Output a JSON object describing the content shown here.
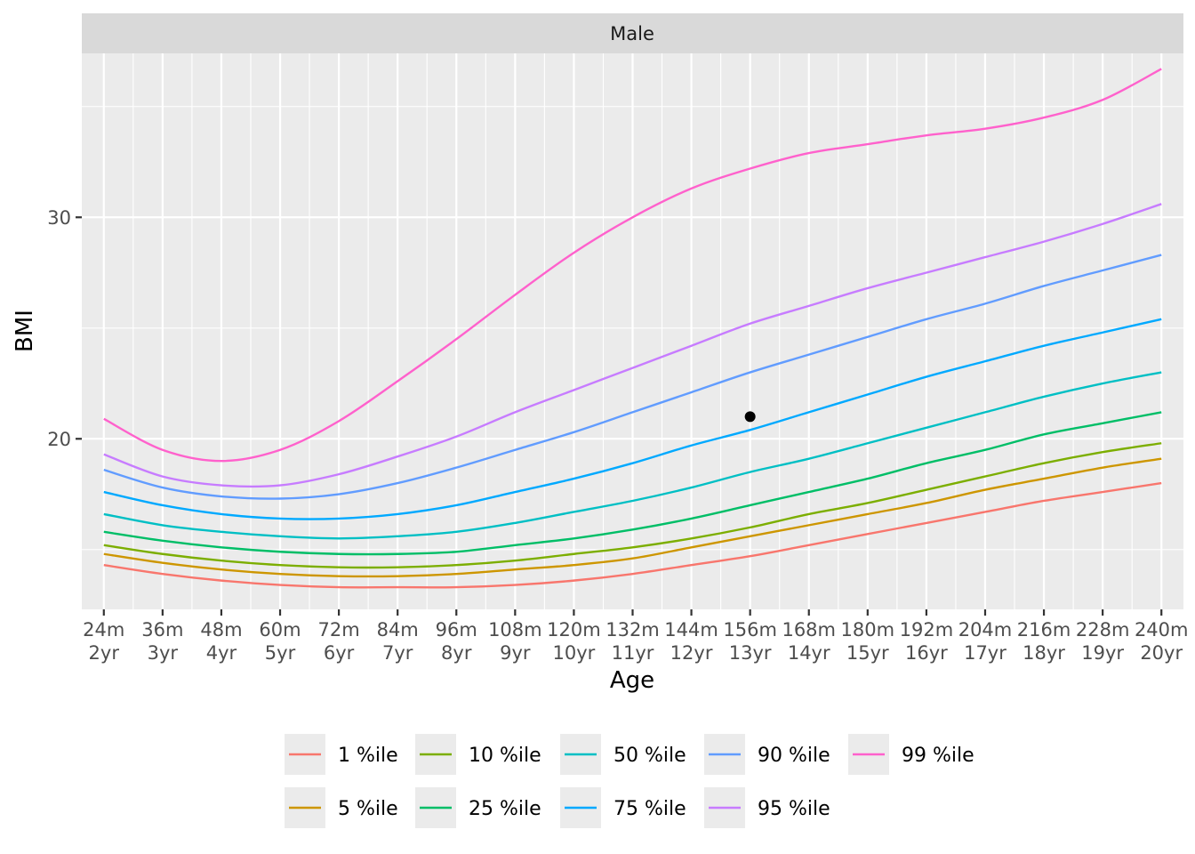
{
  "chart_data": {
    "type": "line",
    "facet_label": "Male",
    "xlabel": "Age",
    "ylabel": "BMI",
    "x_unit": "months",
    "xlim": [
      19.5,
      244.5
    ],
    "ylim": [
      12.3,
      37.4
    ],
    "x_ticks": [
      {
        "value": 24,
        "line1": "24m",
        "line2": "2yr"
      },
      {
        "value": 36,
        "line1": "36m",
        "line2": "3yr"
      },
      {
        "value": 48,
        "line1": "48m",
        "line2": "4yr"
      },
      {
        "value": 60,
        "line1": "60m",
        "line2": "5yr"
      },
      {
        "value": 72,
        "line1": "72m",
        "line2": "6yr"
      },
      {
        "value": 84,
        "line1": "84m",
        "line2": "7yr"
      },
      {
        "value": 96,
        "line1": "96m",
        "line2": "8yr"
      },
      {
        "value": 108,
        "line1": "108m",
        "line2": "9yr"
      },
      {
        "value": 120,
        "line1": "120m",
        "line2": "10yr"
      },
      {
        "value": 132,
        "line1": "132m",
        "line2": "11yr"
      },
      {
        "value": 144,
        "line1": "144m",
        "line2": "12yr"
      },
      {
        "value": 156,
        "line1": "156m",
        "line2": "13yr"
      },
      {
        "value": 168,
        "line1": "168m",
        "line2": "14yr"
      },
      {
        "value": 180,
        "line1": "180m",
        "line2": "15yr"
      },
      {
        "value": 192,
        "line1": "192m",
        "line2": "16yr"
      },
      {
        "value": 204,
        "line1": "204m",
        "line2": "17yr"
      },
      {
        "value": 216,
        "line1": "216m",
        "line2": "18yr"
      },
      {
        "value": 228,
        "line1": "228m",
        "line2": "19yr"
      },
      {
        "value": 240,
        "line1": "240m",
        "line2": "20yr"
      }
    ],
    "y_ticks": [
      20,
      30
    ],
    "x": [
      24,
      36,
      48,
      60,
      72,
      84,
      96,
      108,
      120,
      132,
      144,
      156,
      168,
      180,
      192,
      204,
      216,
      228,
      240
    ],
    "series": [
      {
        "name": "1 %ile",
        "color": "#F8766D",
        "values": [
          14.3,
          13.9,
          13.6,
          13.4,
          13.3,
          13.3,
          13.3,
          13.4,
          13.6,
          13.9,
          14.3,
          14.7,
          15.2,
          15.7,
          16.2,
          16.7,
          17.2,
          17.6,
          18.0
        ]
      },
      {
        "name": "5 %ile",
        "color": "#CD9600",
        "values": [
          14.8,
          14.4,
          14.1,
          13.9,
          13.8,
          13.8,
          13.9,
          14.1,
          14.3,
          14.6,
          15.1,
          15.6,
          16.1,
          16.6,
          17.1,
          17.7,
          18.2,
          18.7,
          19.1
        ]
      },
      {
        "name": "10 %ile",
        "color": "#7CAE00",
        "values": [
          15.2,
          14.8,
          14.5,
          14.3,
          14.2,
          14.2,
          14.3,
          14.5,
          14.8,
          15.1,
          15.5,
          16.0,
          16.6,
          17.1,
          17.7,
          18.3,
          18.9,
          19.4,
          19.8
        ]
      },
      {
        "name": "25 %ile",
        "color": "#00BE67",
        "values": [
          15.8,
          15.4,
          15.1,
          14.9,
          14.8,
          14.8,
          14.9,
          15.2,
          15.5,
          15.9,
          16.4,
          17.0,
          17.6,
          18.2,
          18.9,
          19.5,
          20.2,
          20.7,
          21.2
        ]
      },
      {
        "name": "50 %ile",
        "color": "#00BFC4",
        "values": [
          16.6,
          16.1,
          15.8,
          15.6,
          15.5,
          15.6,
          15.8,
          16.2,
          16.7,
          17.2,
          17.8,
          18.5,
          19.1,
          19.8,
          20.5,
          21.2,
          21.9,
          22.5,
          23.0
        ]
      },
      {
        "name": "75 %ile",
        "color": "#00A9FF",
        "values": [
          17.6,
          17.0,
          16.6,
          16.4,
          16.4,
          16.6,
          17.0,
          17.6,
          18.2,
          18.9,
          19.7,
          20.4,
          21.2,
          22.0,
          22.8,
          23.5,
          24.2,
          24.8,
          25.4
        ]
      },
      {
        "name": "90 %ile",
        "color": "#619CFF",
        "values": [
          18.6,
          17.8,
          17.4,
          17.3,
          17.5,
          18.0,
          18.7,
          19.5,
          20.3,
          21.2,
          22.1,
          23.0,
          23.8,
          24.6,
          25.4,
          26.1,
          26.9,
          27.6,
          28.3
        ]
      },
      {
        "name": "95 %ile",
        "color": "#C77CFF",
        "values": [
          19.3,
          18.3,
          17.9,
          17.9,
          18.4,
          19.2,
          20.1,
          21.2,
          22.2,
          23.2,
          24.2,
          25.2,
          26.0,
          26.8,
          27.5,
          28.2,
          28.9,
          29.7,
          30.6
        ]
      },
      {
        "name": "99 %ile",
        "color": "#FF61CC",
        "values": [
          20.9,
          19.5,
          19.0,
          19.5,
          20.8,
          22.6,
          24.5,
          26.5,
          28.4,
          30.0,
          31.3,
          32.2,
          32.9,
          33.3,
          33.7,
          34.0,
          34.5,
          35.3,
          36.7
        ]
      }
    ],
    "points": [
      {
        "x": 156,
        "y": 21.0,
        "color": "#000000"
      }
    ],
    "grid": true,
    "legend_position": "bottom"
  }
}
